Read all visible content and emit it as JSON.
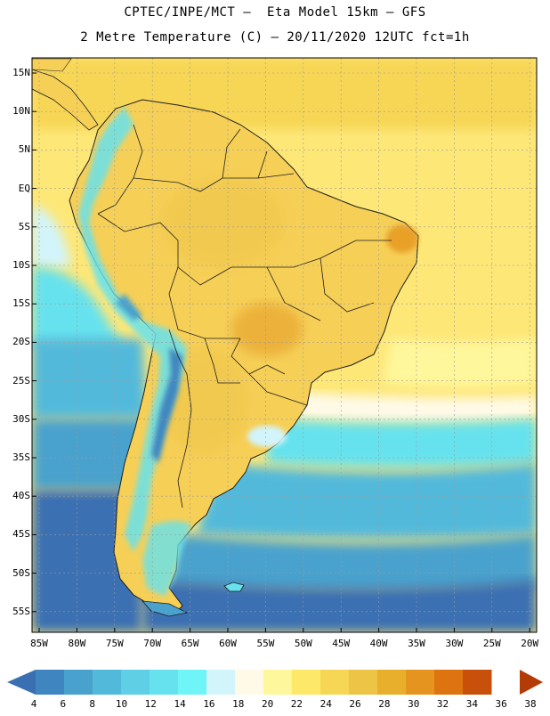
{
  "header": {
    "line1": "CPTEC/INPE/MCT –  Eta Model 15km – GFS",
    "line2": "2 Metre Temperature (C) – 20/11/2020 12UTC fct=1h"
  },
  "axes": {
    "lat_labels": [
      "15N",
      "10N",
      "5N",
      "EQ",
      "5S",
      "10S",
      "15S",
      "20S",
      "25S",
      "30S",
      "35S",
      "40S",
      "45S",
      "50S",
      "55S"
    ],
    "lon_labels": [
      "85W",
      "80W",
      "75W",
      "70W",
      "65W",
      "60W",
      "55W",
      "50W",
      "45W",
      "40W",
      "35W",
      "30W",
      "25W",
      "20W"
    ]
  },
  "colorbar": {
    "labels": [
      "4",
      "6",
      "8",
      "10",
      "12",
      "14",
      "16",
      "18",
      "20",
      "22",
      "24",
      "26",
      "28",
      "30",
      "32",
      "34",
      "36",
      "38"
    ],
    "colors": [
      "#3a6fb2",
      "#3f86c0",
      "#48a2cd",
      "#53b9db",
      "#5fcfe6",
      "#66e2ee",
      "#6ff4f7",
      "#d2f4fb",
      "#fffae8",
      "#fff79c",
      "#fde869",
      "#f7d655",
      "#eec446",
      "#e8af2c",
      "#e5951f",
      "#de7410",
      "#c9500a",
      "#b23b06"
    ]
  },
  "map": {
    "field": "2 Metre Temperature",
    "units": "C",
    "colors": {
      "ocean_cold": "#2e5fa3",
      "ocean_cool": "#3f86c0",
      "ocean_mild": "#53b9db",
      "ocean_cyan": "#66e2ee",
      "ocean_pale": "#d2f4fb",
      "ocean_cream": "#fffae8",
      "ocean_warm": "#fdeb84",
      "land_base": "#f6cf57",
      "land_warm": "#eec446",
      "land_hot": "#e8a830",
      "andes_cold": "#4d8fc6",
      "andes_cool": "#66e2ee",
      "border": "#1e1e1e",
      "grid": "#9a9a9a"
    }
  }
}
